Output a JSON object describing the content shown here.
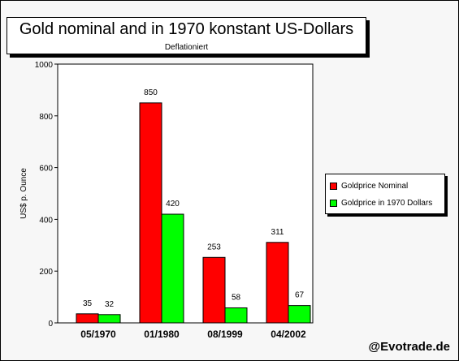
{
  "chart_data": {
    "type": "bar",
    "title": "Gold nominal and in 1970 konstant US-Dollars",
    "subtitle": "Deflationiert",
    "ylabel": "US$ p. Ounce",
    "xlabel": "",
    "ylim": [
      0,
      1000
    ],
    "yticks": [
      0,
      200,
      400,
      600,
      800,
      1000
    ],
    "categories": [
      "05/1970",
      "01/1980",
      "08/1999",
      "04/2002"
    ],
    "series": [
      {
        "name": "Goldprice Nominal",
        "values": [
          35,
          850,
          253,
          311
        ],
        "color": "#ff0000"
      },
      {
        "name": "Goldprice in 1970 Dollars",
        "values": [
          32,
          420,
          58,
          67
        ],
        "color": "#00ff00"
      }
    ],
    "grid": false,
    "legend_position": "right",
    "data_labels": true
  },
  "credit": "@Evotrade.de"
}
